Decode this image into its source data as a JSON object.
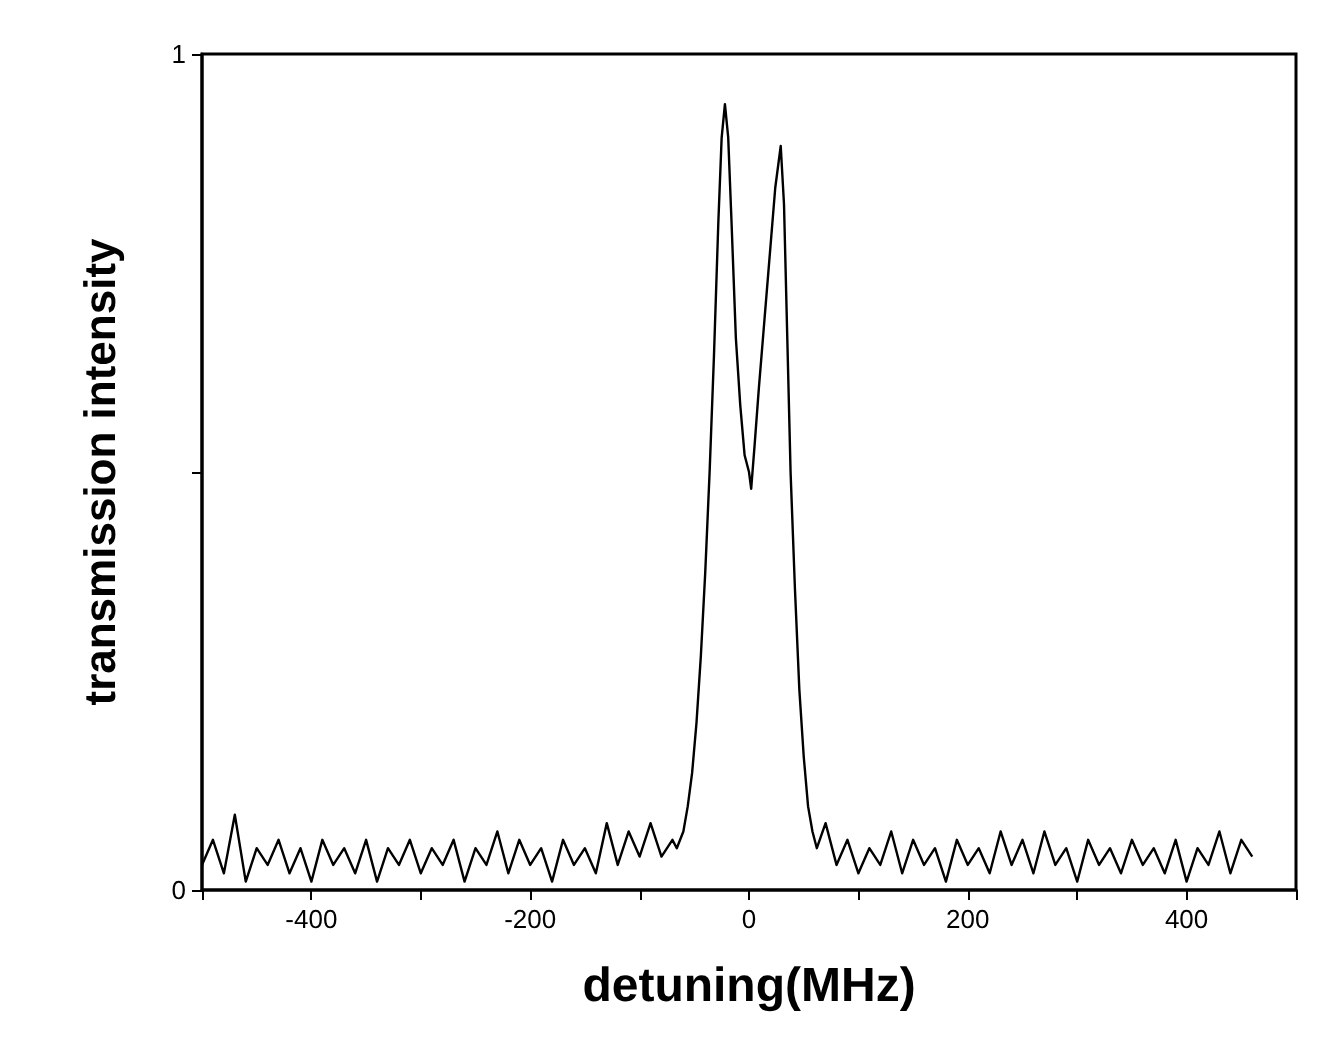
{
  "chart_data": {
    "type": "line",
    "xlabel": "detuning(MHz)",
    "ylabel": "transmission intensity",
    "x": [
      -500,
      -490,
      -480,
      -470,
      -460,
      -450,
      -440,
      -430,
      -420,
      -410,
      -400,
      -390,
      -380,
      -370,
      -360,
      -350,
      -340,
      -330,
      -320,
      -310,
      -300,
      -290,
      -280,
      -270,
      -260,
      -250,
      -240,
      -230,
      -220,
      -210,
      -200,
      -190,
      -180,
      -170,
      -160,
      -150,
      -140,
      -130,
      -120,
      -110,
      -100,
      -90,
      -80,
      -70,
      -66,
      -60,
      -56,
      -52,
      -48,
      -44,
      -40,
      -36,
      -32,
      -28,
      -25,
      -22,
      -19,
      -16,
      -12,
      -8,
      -4,
      0,
      2,
      5,
      9,
      14,
      19,
      24,
      29,
      32,
      35,
      38,
      42,
      46,
      50,
      54,
      58,
      62,
      70,
      80,
      90,
      100,
      110,
      120,
      130,
      140,
      150,
      160,
      170,
      180,
      190,
      200,
      210,
      220,
      230,
      240,
      250,
      260,
      270,
      280,
      290,
      300,
      310,
      320,
      330,
      340,
      350,
      360,
      370,
      380,
      390,
      400,
      410,
      420,
      430,
      440,
      450,
      460
    ],
    "series": [
      {
        "color": "#000000",
        "values": [
          0.03,
          0.06,
          0.02,
          0.09,
          0.01,
          0.05,
          0.03,
          0.06,
          0.02,
          0.05,
          0.01,
          0.06,
          0.03,
          0.05,
          0.02,
          0.06,
          0.01,
          0.05,
          0.03,
          0.06,
          0.02,
          0.05,
          0.03,
          0.06,
          0.01,
          0.05,
          0.03,
          0.07,
          0.02,
          0.06,
          0.03,
          0.05,
          0.01,
          0.06,
          0.03,
          0.05,
          0.02,
          0.08,
          0.03,
          0.07,
          0.04,
          0.08,
          0.04,
          0.06,
          0.05,
          0.07,
          0.1,
          0.14,
          0.2,
          0.28,
          0.38,
          0.5,
          0.64,
          0.8,
          0.9,
          0.94,
          0.9,
          0.8,
          0.66,
          0.58,
          0.52,
          0.5,
          0.48,
          0.53,
          0.6,
          0.68,
          0.76,
          0.84,
          0.89,
          0.82,
          0.66,
          0.5,
          0.36,
          0.24,
          0.16,
          0.1,
          0.07,
          0.05,
          0.08,
          0.03,
          0.06,
          0.02,
          0.05,
          0.03,
          0.07,
          0.02,
          0.06,
          0.03,
          0.05,
          0.01,
          0.06,
          0.03,
          0.05,
          0.02,
          0.07,
          0.03,
          0.06,
          0.02,
          0.07,
          0.03,
          0.05,
          0.01,
          0.06,
          0.03,
          0.05,
          0.02,
          0.06,
          0.03,
          0.05,
          0.02,
          0.06,
          0.01,
          0.05,
          0.03,
          0.07,
          0.02,
          0.06,
          0.04
        ]
      }
    ],
    "xlim": [
      -500,
      500
    ],
    "ylim": [
      0,
      1
    ],
    "xticks": [
      {
        "value": -500,
        "label": null
      },
      -400,
      {
        "value": -300,
        "label": null
      },
      -200,
      {
        "value": -100,
        "label": null
      },
      0,
      {
        "value": 100,
        "label": null
      },
      200,
      {
        "value": 300,
        "label": null
      },
      400,
      {
        "value": 500,
        "label": null
      }
    ],
    "yticks": [
      0,
      {
        "value": 0.5,
        "label": null
      },
      1
    ],
    "grid": false,
    "marker": "none",
    "line_style": "solid"
  }
}
